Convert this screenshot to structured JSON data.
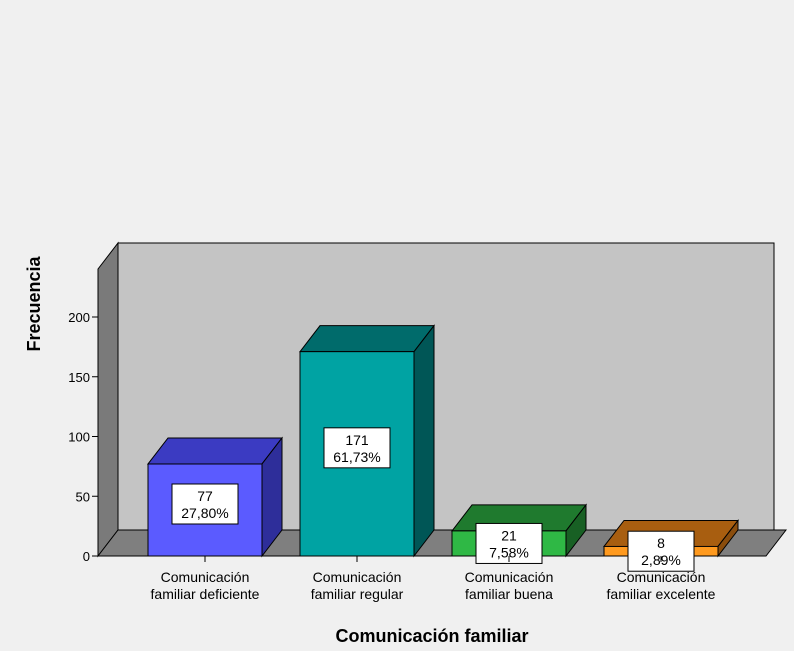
{
  "chart_data": {
    "type": "bar",
    "xlabel": "Comunicación familiar",
    "ylabel": "Frecuencia",
    "ylim": [
      0,
      200
    ],
    "yticks": [
      0,
      50,
      100,
      150,
      200
    ],
    "categories": [
      [
        "Comunicación",
        "familiar deficiente"
      ],
      [
        "Comunicación",
        "familiar regular"
      ],
      [
        "Comunicación",
        "familiar buena"
      ],
      [
        "Comunicación",
        "familiar excelente"
      ]
    ],
    "values": [
      77,
      171,
      21,
      8
    ],
    "percent_labels": [
      "27,80%",
      "61,73%",
      "7,58%",
      "2,89%"
    ],
    "colors": [
      {
        "front": "#5b5bff",
        "top": "#3b3bc2",
        "side": "#2e2e9a"
      },
      {
        "front": "#00a3a3",
        "top": "#006b6b",
        "side": "#005656"
      },
      {
        "front": "#2fb845",
        "top": "#1f7a2e",
        "side": "#186024"
      },
      {
        "front": "#ff9a1f",
        "top": "#a85e10",
        "side": "#8a4d0d"
      }
    ],
    "plot_background": "#c4c4c4",
    "wall_color": "#7a7a7a",
    "floor_color": "#7f7f7f"
  }
}
